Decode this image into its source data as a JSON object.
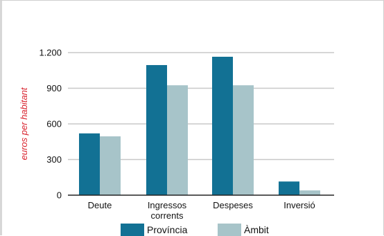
{
  "chart_data": {
    "type": "bar",
    "ylabel": "euros per habitant",
    "xlabel": "",
    "ylim": [
      0,
      1200
    ],
    "yticks": [
      0,
      300,
      600,
      900,
      1200
    ],
    "ytick_labels": [
      "0",
      "300",
      "600",
      "900",
      "1.200"
    ],
    "grid": true,
    "legend_position": "bottom",
    "categories": [
      [
        "Deute"
      ],
      [
        "Ingressos",
        "corrents"
      ],
      [
        "Despeses"
      ],
      [
        "Inversió"
      ]
    ],
    "series": [
      {
        "name": "Província",
        "color": "#127194",
        "values": [
          520,
          1095,
          1165,
          115
        ]
      },
      {
        "name": "Àmbit",
        "color": "#a7c4c9",
        "values": [
          495,
          925,
          925,
          40
        ]
      }
    ]
  }
}
